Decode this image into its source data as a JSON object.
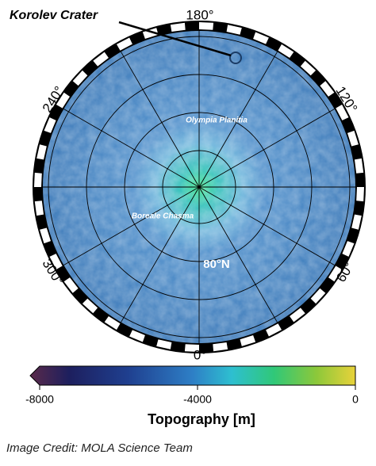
{
  "callout": "Korolev Crater",
  "longitude_labels": [
    "180°",
    "240°",
    "120°",
    "300°",
    "60°",
    "0°"
  ],
  "features": [
    "Olympia Planitia",
    "Boreale Chasma"
  ],
  "latitude_label": "80°N",
  "colorbar": {
    "lim": [
      -8000,
      0
    ],
    "ticks": [
      -8000,
      -4000,
      0
    ],
    "label": "Topography [m]"
  },
  "credit": "Image Credit: MOLA Science Team"
}
